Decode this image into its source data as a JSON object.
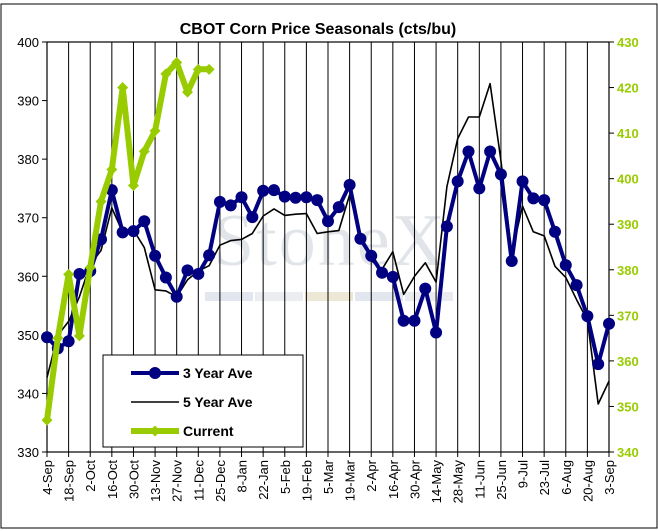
{
  "chart_data": {
    "type": "line",
    "title": "CBOT Corn Price Seasonals (cts/bu)",
    "xlabel": "",
    "ylabel": "",
    "categories": [
      "4-Sep",
      "18-Sep",
      "2-Oct",
      "16-Oct",
      "30-Oct",
      "13-Nov",
      "27-Nov",
      "11-Dec",
      "25-Dec",
      "8-Jan",
      "22-Jan",
      "5-Feb",
      "19-Feb",
      "5-Mar",
      "19-Mar",
      "2-Apr",
      "16-Apr",
      "30-Apr",
      "14-May",
      "28-May",
      "11-Jun",
      "25-Jun",
      "9-Jul",
      "23-Jul",
      "6-Aug",
      "20-Aug",
      "3-Sep"
    ],
    "ylim": [
      330,
      400
    ],
    "yticks": [
      330,
      340,
      350,
      360,
      370,
      380,
      390,
      400
    ],
    "y2lim": [
      340,
      430
    ],
    "y2ticks": [
      340,
      350,
      360,
      370,
      380,
      390,
      400,
      410,
      420,
      430
    ],
    "grid": "vertical",
    "legend_position": "bottom-left",
    "series": [
      {
        "name": "3 Year Ave",
        "axis": "left",
        "color": "#000080",
        "x": [
          0,
          0.5,
          1,
          1.5,
          2,
          2.5,
          3,
          3.5,
          4,
          4.5,
          5,
          5.5,
          6,
          6.5,
          7,
          7.5,
          8,
          8.5,
          9,
          9.5,
          10,
          10.5,
          11,
          11.5,
          12,
          12.5,
          13,
          13.5,
          14,
          14.5,
          15,
          15.5,
          16,
          16.5,
          17,
          17.5,
          18,
          18.5,
          19,
          19.5,
          20,
          20.5,
          21,
          21.5,
          22,
          22.5,
          23,
          23.5,
          24,
          24.5,
          25,
          25.5,
          26
        ],
        "values": [
          349.6,
          347.7,
          348.9,
          360.4,
          360.9,
          366.3,
          374.7,
          367.5,
          367.7,
          369.4,
          363.5,
          359.8,
          356.5,
          361.0,
          360.4,
          363.6,
          372.7,
          372.1,
          373.5,
          370.1,
          374.6,
          374.7,
          373.6,
          373.4,
          373.5,
          373.0,
          369.4,
          371.8,
          375.6,
          366.4,
          363.5,
          360.6,
          359.9,
          352.4,
          352.4,
          357.9,
          350.4,
          368.5,
          376.2,
          381.3,
          375.0,
          381.3,
          377.4,
          362.6,
          376.2,
          373.3,
          373.0,
          367.6,
          361.9,
          358.5,
          353.2,
          345.0,
          351.9
        ]
      },
      {
        "name": "5 Year Ave",
        "axis": "left",
        "color": "#000000",
        "x": [
          0,
          0.5,
          1,
          1.5,
          2,
          2.5,
          3,
          3.5,
          4,
          4.5,
          5,
          5.5,
          6,
          6.5,
          7,
          7.5,
          8,
          8.5,
          9,
          9.5,
          10,
          10.5,
          11,
          11.5,
          12,
          12.5,
          13,
          13.5,
          14,
          14.5,
          15,
          15.5,
          16,
          16.5,
          17,
          17.5,
          18,
          18.5,
          19,
          19.5,
          20,
          20.5,
          21,
          21.5,
          22,
          22.5,
          23,
          23.5,
          24,
          24.5,
          25,
          25.5,
          26
        ],
        "values": [
          342.7,
          349.9,
          352.3,
          356.5,
          362.0,
          364.4,
          371.7,
          367.5,
          367.9,
          364.9,
          357.7,
          357.5,
          356.5,
          359.4,
          360.9,
          361.8,
          365.3,
          366.1,
          366.3,
          367.3,
          370.3,
          371.5,
          370.4,
          370.6,
          370.7,
          367.3,
          367.6,
          367.8,
          373.9,
          367.3,
          362.7,
          361.2,
          364.2,
          356.9,
          360.0,
          362.3,
          359.0,
          375.3,
          383.5,
          387.2,
          387.2,
          392.9,
          379.8,
          363.8,
          372.0,
          367.6,
          366.9,
          361.7,
          359.8,
          356.0,
          352.5,
          338.2,
          342.1
        ]
      },
      {
        "name": "Current",
        "axis": "right",
        "color": "#99cc00",
        "x": [
          0,
          0.5,
          1,
          1.5,
          2,
          2.5,
          3,
          3.5,
          4,
          4.5,
          5,
          5.5,
          6,
          6.5,
          7,
          7.5
        ],
        "values": [
          347.0,
          365.0,
          379.0,
          365.5,
          380.5,
          395.0,
          402.0,
          420.0,
          398.5,
          406.0,
          410.5,
          423.0,
          425.5,
          419.0,
          424.0,
          424.0
        ]
      }
    ]
  },
  "watermark": "StoneX"
}
